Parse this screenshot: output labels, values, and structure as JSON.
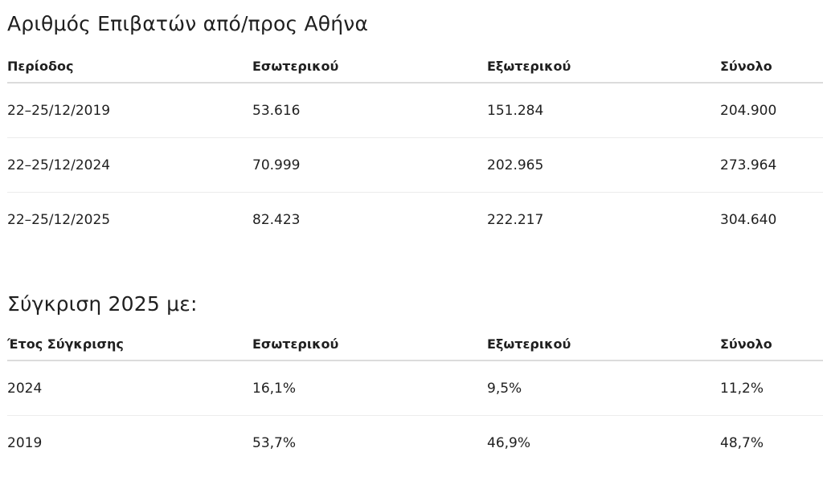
{
  "passengers": {
    "title": "Αριθμός Επιβατών από/προς Αθήνα",
    "headers": [
      "Περίοδος",
      "Εσωτερικού",
      "Εξωτερικού",
      "Σύνολο"
    ],
    "rows": [
      [
        "22–25/12/2019",
        "53.616",
        "151.284",
        "204.900"
      ],
      [
        "22–25/12/2024",
        "70.999",
        "202.965",
        "273.964"
      ],
      [
        "22–25/12/2025",
        "82.423",
        "222.217",
        "304.640"
      ]
    ]
  },
  "comparison": {
    "title": "Σύγκριση 2025 με:",
    "headers": [
      "Έτος Σύγκρισης",
      "Εσωτερικού",
      "Εξωτερικού",
      "Σύνολο"
    ],
    "rows": [
      [
        "2024",
        "16,1%",
        "9,5%",
        "11,2%"
      ],
      [
        "2019",
        "53,7%",
        "46,9%",
        "48,7%"
      ]
    ]
  }
}
